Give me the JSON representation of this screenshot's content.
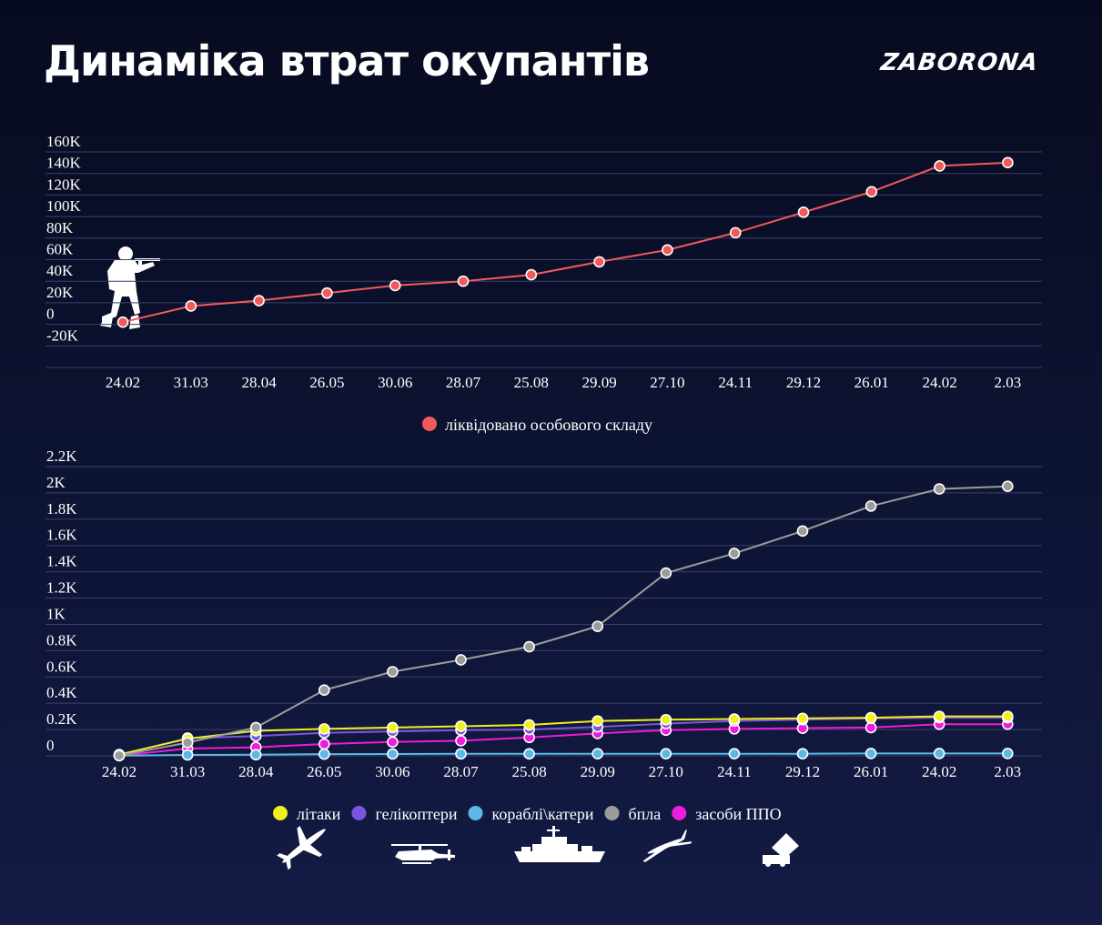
{
  "header": {
    "title": "Динаміка втрат окупантів",
    "logo": "ZABORONA"
  },
  "colors": {
    "personnel": "#f25a5a",
    "aircraft": "#f0f01e",
    "helicopters": "#7b55e0",
    "ships": "#5bb8e8",
    "uav": "#9c9c9c",
    "air_defense": "#ee1cdb",
    "grid": "#3a4068"
  },
  "chart_data": [
    {
      "type": "line",
      "categories": [
        "24.02",
        "31.03",
        "28.04",
        "26.05",
        "30.06",
        "28.07",
        "25.08",
        "29.09",
        "27.10",
        "24.11",
        "29.12",
        "26.01",
        "24.02",
        "2.03"
      ],
      "yticks": [
        "-20K",
        "0",
        "20K",
        "40K",
        "60K",
        "80K",
        "100K",
        "120K",
        "140K",
        "160K"
      ],
      "ylim": [
        -20000,
        160000
      ],
      "grid": true,
      "legend_position": "bottom-center",
      "icon": "soldier-icon",
      "series": [
        {
          "name": "ліквідовано особового складу",
          "color_key": "personnel",
          "values": [
            2000,
            17000,
            22000,
            29000,
            36000,
            40000,
            46000,
            58000,
            69000,
            85000,
            104000,
            123000,
            147000,
            150000
          ]
        }
      ]
    },
    {
      "type": "line",
      "categories": [
        "24.02",
        "31.03",
        "28.04",
        "26.05",
        "30.06",
        "28.07",
        "25.08",
        "29.09",
        "27.10",
        "24.11",
        "29.12",
        "26.01",
        "24.02",
        "2.03"
      ],
      "yticks": [
        "0",
        "0.2K",
        "0.4K",
        "0.6K",
        "0.8K",
        "1K",
        "1.2K",
        "1.4K",
        "1.6K",
        "1.8K",
        "2K",
        "2.2K"
      ],
      "ylim": [
        0,
        2200
      ],
      "grid": true,
      "legend_position": "bottom-center",
      "series": [
        {
          "name": "літаки",
          "color_key": "aircraft",
          "icon": "airplane-icon",
          "values": [
            10,
            130,
            190,
            205,
            215,
            225,
            235,
            265,
            275,
            280,
            285,
            290,
            300,
            300
          ]
        },
        {
          "name": "гелікоптери",
          "color_key": "helicopters",
          "icon": "helicopter-icon",
          "values": [
            5,
            135,
            150,
            175,
            185,
            195,
            200,
            220,
            245,
            265,
            275,
            285,
            290,
            290
          ]
        },
        {
          "name": "кораблі\\катери",
          "color_key": "ships",
          "icon": "warship-icon",
          "values": [
            1,
            7,
            8,
            13,
            14,
            15,
            15,
            16,
            16,
            16,
            16,
            18,
            18,
            18
          ]
        },
        {
          "name": "бпла",
          "color_key": "uav",
          "icon": "drone-icon",
          "values": [
            2,
            100,
            215,
            500,
            640,
            730,
            830,
            985,
            1390,
            1540,
            1710,
            1900,
            2030,
            2050
          ]
        },
        {
          "name": "засоби ППО",
          "color_key": "air_defense",
          "icon": "air-defense-launcher-icon",
          "values": [
            1,
            55,
            65,
            90,
            105,
            115,
            140,
            170,
            195,
            205,
            210,
            215,
            240,
            240
          ]
        }
      ]
    }
  ]
}
